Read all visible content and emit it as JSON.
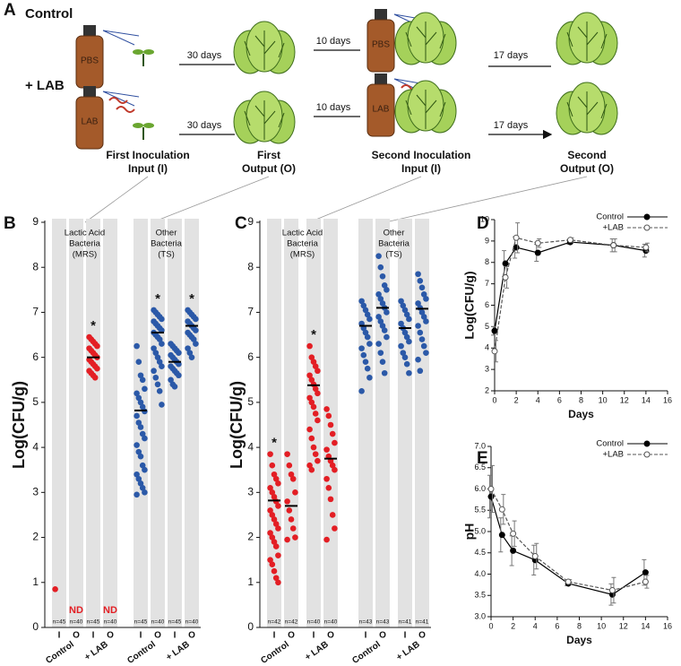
{
  "diagram": {
    "panel": "A",
    "rows": [
      {
        "label": "Control",
        "sprays": [
          "PBS",
          "PBS"
        ],
        "steps": [
          "30 days",
          "10 days",
          "17 days"
        ]
      },
      {
        "label": "+ LAB",
        "sprays": [
          "LAB",
          "LAB"
        ],
        "steps": [
          "30 days",
          "10 days",
          "17 days"
        ]
      }
    ],
    "stages": [
      [
        "First Inoculation",
        "Input (I)"
      ],
      [
        "First",
        "Output (O)"
      ],
      [
        "Second Inoculation",
        "Input (I)"
      ],
      [
        "Second",
        "Output (O)"
      ]
    ]
  },
  "chart_data": [
    {
      "type": "strip",
      "panel": "B",
      "ylabel": "Log(CFU/g)",
      "ylim": [
        0,
        9
      ],
      "yticks": [
        0,
        1,
        2,
        3,
        4,
        5,
        6,
        7,
        8,
        9
      ],
      "groups": [
        {
          "header": [
            "Lactic Acid",
            "Bacteria",
            "(MRS)"
          ],
          "color": "#e31e24"
        },
        {
          "header": [
            "Other",
            "Bacteria",
            "(TS)"
          ],
          "color": "#2b59a8"
        }
      ],
      "treatments": [
        "Control",
        "+ LAB",
        "Control",
        "+ LAB"
      ],
      "columns": [
        {
          "label": "I",
          "n": "n=45",
          "values": [
            0.85
          ]
        },
        {
          "label": "O",
          "n": "n=40",
          "values": [],
          "note": "ND"
        },
        {
          "label": "I",
          "n": "n=45",
          "values": [
            6.45,
            6.4,
            6.35,
            6.3,
            6.25,
            6.2,
            6.15,
            6.1,
            6.05,
            6.0,
            5.95,
            5.9,
            5.85,
            5.8,
            5.75,
            5.7,
            5.65,
            5.6,
            5.55
          ],
          "mean": 6.0,
          "star": "*"
        },
        {
          "label": "O",
          "n": "n=40",
          "values": [],
          "note": "ND"
        },
        {
          "label": "I",
          "n": "n=45",
          "values": [
            6.25,
            5.9,
            5.6,
            5.5,
            5.3,
            5.2,
            5.1,
            5.0,
            4.9,
            4.8,
            4.7,
            4.55,
            4.45,
            4.3,
            4.2,
            4.05,
            3.9,
            3.8,
            3.6,
            3.5,
            3.4,
            3.3,
            3.2,
            3.1,
            3.0,
            2.95
          ],
          "mean": 4.82
        },
        {
          "label": "O",
          "n": "n=40",
          "values": [
            7.05,
            7.0,
            6.95,
            6.9,
            6.85,
            6.8,
            6.75,
            6.7,
            6.65,
            6.6,
            6.55,
            6.5,
            6.45,
            6.4,
            6.3,
            6.2,
            6.1,
            6.0,
            5.9,
            5.8,
            5.7,
            5.55,
            5.4,
            5.25,
            4.95
          ],
          "mean": 6.55,
          "star": "*"
        },
        {
          "label": "I",
          "n": "n=45",
          "values": [
            6.3,
            6.25,
            6.2,
            6.15,
            6.1,
            6.05,
            6.0,
            5.95,
            5.9,
            5.85,
            5.8,
            5.75,
            5.7,
            5.65,
            5.6,
            5.5,
            5.4,
            5.35
          ],
          "mean": 5.9
        },
        {
          "label": "O",
          "n": "n=40",
          "values": [
            7.05,
            7.0,
            6.95,
            6.9,
            6.85,
            6.8,
            6.75,
            6.7,
            6.65,
            6.6,
            6.55,
            6.5,
            6.45,
            6.4,
            6.3,
            6.2,
            6.1,
            6.0
          ],
          "mean": 6.7,
          "star": "*"
        }
      ]
    },
    {
      "type": "strip",
      "panel": "C",
      "ylabel": "Log(CFU/g)",
      "ylim": [
        0,
        9
      ],
      "yticks": [
        0,
        1,
        2,
        3,
        4,
        5,
        6,
        7,
        8,
        9
      ],
      "groups": [
        {
          "header": [
            "Lactic Acid",
            "Bacteria",
            "(MRS)"
          ],
          "color": "#e31e24"
        },
        {
          "header": [
            "Other",
            "Bacteria",
            "(TS)"
          ],
          "color": "#2b59a8"
        }
      ],
      "treatments": [
        "Control",
        "+ LAB",
        "Control",
        "+ LAB"
      ],
      "columns": [
        {
          "label": "I",
          "n": "n=42",
          "values": [
            3.85,
            3.6,
            3.4,
            3.3,
            3.2,
            3.1,
            3.0,
            2.9,
            2.8,
            2.7,
            2.6,
            2.5,
            2.4,
            2.3,
            2.2,
            2.1,
            2.0,
            1.9,
            1.8,
            1.6,
            1.5,
            1.4,
            1.25,
            1.1,
            1.0
          ],
          "mean": 2.82,
          "star": "*"
        },
        {
          "label": "O",
          "n": "n=42",
          "values": [
            3.85,
            3.6,
            3.4,
            3.3,
            3.0,
            2.8,
            2.6,
            2.4,
            2.2,
            2.0,
            1.95
          ],
          "mean": 2.7
        },
        {
          "label": "I",
          "n": "n=40",
          "values": [
            6.25,
            6.0,
            5.9,
            5.8,
            5.7,
            5.6,
            5.5,
            5.4,
            5.3,
            5.2,
            5.1,
            5.0,
            4.9,
            4.75,
            4.6,
            4.4,
            4.2,
            4.0,
            3.85,
            3.7,
            3.6,
            3.5
          ],
          "mean": 5.38,
          "star": "*"
        },
        {
          "label": "O",
          "n": "n=40",
          "values": [
            4.85,
            4.7,
            4.5,
            4.3,
            4.1,
            3.95,
            3.8,
            3.7,
            3.6,
            3.5,
            3.3,
            3.1,
            2.85,
            2.5,
            2.2,
            1.95
          ],
          "mean": 3.75
        },
        {
          "label": "I",
          "n": "n=43",
          "values": [
            7.25,
            7.15,
            7.05,
            6.95,
            6.85,
            6.75,
            6.65,
            6.55,
            6.45,
            6.3,
            6.2,
            6.05,
            5.9,
            5.75,
            5.55,
            5.25
          ],
          "mean": 6.7
        },
        {
          "label": "O",
          "n": "n=43",
          "values": [
            8.25,
            8.0,
            7.8,
            7.6,
            7.5,
            7.4,
            7.3,
            7.2,
            7.1,
            7.0,
            6.9,
            6.8,
            6.7,
            6.6,
            6.45,
            6.3,
            6.1,
            5.9,
            5.65
          ],
          "mean": 7.1
        },
        {
          "label": "I",
          "n": "n=41",
          "values": [
            7.25,
            7.15,
            7.05,
            6.95,
            6.85,
            6.75,
            6.65,
            6.55,
            6.45,
            6.35,
            6.25,
            6.1,
            6.0,
            5.85,
            5.65
          ],
          "mean": 6.65
        },
        {
          "label": "O",
          "n": "n=41",
          "values": [
            7.85,
            7.7,
            7.55,
            7.4,
            7.3,
            7.2,
            7.1,
            7.0,
            6.9,
            6.8,
            6.7,
            6.55,
            6.4,
            6.25,
            6.1,
            5.95,
            5.7
          ],
          "mean": 7.08
        }
      ]
    },
    {
      "type": "line",
      "panel": "D",
      "xlabel": "Days",
      "ylabel": "Log(CFU/g)",
      "xlim": [
        0,
        16
      ],
      "xticks": [
        0,
        2,
        4,
        6,
        8,
        10,
        12,
        14,
        16
      ],
      "ylim": [
        2,
        10
      ],
      "yticks": [
        2,
        3,
        4,
        5,
        6,
        7,
        8,
        9,
        10
      ],
      "legend": "upper right",
      "x": [
        0,
        1,
        2,
        4,
        7,
        11,
        14
      ],
      "series": [
        {
          "name": "Control",
          "color": "#000000",
          "marker": "filled",
          "dash": false,
          "values": [
            4.8,
            7.95,
            8.7,
            8.45,
            8.95,
            8.8,
            8.55
          ],
          "errors": [
            0.2,
            0.6,
            0.5,
            0.4,
            0.1,
            0.3,
            0.3
          ]
        },
        {
          "name": "+LAB",
          "color": "#555555",
          "marker": "open",
          "dash": true,
          "values": [
            3.85,
            7.3,
            9.15,
            8.9,
            9.05,
            8.8,
            8.7
          ],
          "errors": [
            0.5,
            0.5,
            0.7,
            0.2,
            0.1,
            0.3,
            0.2
          ]
        }
      ]
    },
    {
      "type": "line",
      "panel": "E",
      "xlabel": "Days",
      "ylabel": "pH",
      "xlim": [
        0,
        16
      ],
      "xticks": [
        0,
        2,
        4,
        6,
        8,
        10,
        12,
        14,
        16
      ],
      "ylim": [
        3,
        7
      ],
      "yticks": [
        {
          "value": 3,
          "label": "3.0"
        },
        3.5,
        {
          "value": 4,
          "label": "4.0"
        },
        4.5,
        {
          "value": 5,
          "label": "5.0"
        },
        5.5,
        {
          "value": 6,
          "label": "6.0"
        },
        6.5,
        {
          "value": 7,
          "label": "7.0"
        }
      ],
      "legend": "upper right",
      "x": [
        0,
        1,
        2,
        4,
        7,
        11,
        14
      ],
      "series": [
        {
          "name": "Control",
          "color": "#000000",
          "marker": "filled",
          "dash": false,
          "values": [
            5.82,
            4.92,
            4.55,
            4.33,
            3.78,
            3.52,
            4.04
          ],
          "errors": [
            0.5,
            0.4,
            0.35,
            0.35,
            0.05,
            0.25,
            0.3
          ]
        },
        {
          "name": "+LAB",
          "color": "#555555",
          "marker": "open",
          "dash": true,
          "values": [
            6.0,
            5.52,
            4.95,
            4.42,
            3.82,
            3.62,
            3.82
          ],
          "errors": [
            0.55,
            0.35,
            0.3,
            0.3,
            0.05,
            0.3,
            0.15
          ]
        }
      ]
    }
  ]
}
